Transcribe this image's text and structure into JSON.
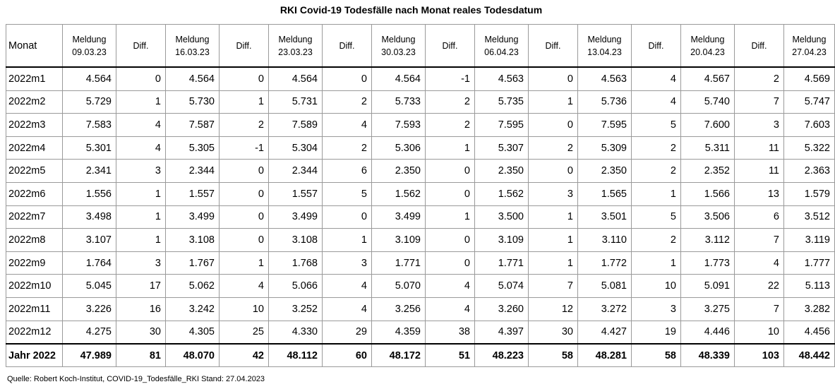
{
  "title": "RKI Covid-19 Todesfälle nach Monat reales Todesdatum",
  "headers": {
    "month": "Monat",
    "diff": "Diff.",
    "meldung_label": "Meldung",
    "meldung_dates": [
      "09.03.23",
      "16.03.23",
      "23.03.23",
      "30.03.23",
      "06.04.23",
      "13.04.23",
      "20.04.23",
      "27.04.23"
    ]
  },
  "rows": [
    {
      "month": "2022m1",
      "cells": [
        "4.564",
        "0",
        "4.564",
        "0",
        "4.564",
        "0",
        "4.564",
        "-1",
        "4.563",
        "0",
        "4.563",
        "4",
        "4.567",
        "2",
        "4.569"
      ]
    },
    {
      "month": "2022m2",
      "cells": [
        "5.729",
        "1",
        "5.730",
        "1",
        "5.731",
        "2",
        "5.733",
        "2",
        "5.735",
        "1",
        "5.736",
        "4",
        "5.740",
        "7",
        "5.747"
      ]
    },
    {
      "month": "2022m3",
      "cells": [
        "7.583",
        "4",
        "7.587",
        "2",
        "7.589",
        "4",
        "7.593",
        "2",
        "7.595",
        "0",
        "7.595",
        "5",
        "7.600",
        "3",
        "7.603"
      ]
    },
    {
      "month": "2022m4",
      "cells": [
        "5.301",
        "4",
        "5.305",
        "-1",
        "5.304",
        "2",
        "5.306",
        "1",
        "5.307",
        "2",
        "5.309",
        "2",
        "5.311",
        "11",
        "5.322"
      ]
    },
    {
      "month": "2022m5",
      "cells": [
        "2.341",
        "3",
        "2.344",
        "0",
        "2.344",
        "6",
        "2.350",
        "0",
        "2.350",
        "0",
        "2.350",
        "2",
        "2.352",
        "11",
        "2.363"
      ]
    },
    {
      "month": "2022m6",
      "cells": [
        "1.556",
        "1",
        "1.557",
        "0",
        "1.557",
        "5",
        "1.562",
        "0",
        "1.562",
        "3",
        "1.565",
        "1",
        "1.566",
        "13",
        "1.579"
      ]
    },
    {
      "month": "2022m7",
      "cells": [
        "3.498",
        "1",
        "3.499",
        "0",
        "3.499",
        "0",
        "3.499",
        "1",
        "3.500",
        "1",
        "3.501",
        "5",
        "3.506",
        "6",
        "3.512"
      ]
    },
    {
      "month": "2022m8",
      "cells": [
        "3.107",
        "1",
        "3.108",
        "0",
        "3.108",
        "1",
        "3.109",
        "0",
        "3.109",
        "1",
        "3.110",
        "2",
        "3.112",
        "7",
        "3.119"
      ]
    },
    {
      "month": "2022m9",
      "cells": [
        "1.764",
        "3",
        "1.767",
        "1",
        "1.768",
        "3",
        "1.771",
        "0",
        "1.771",
        "1",
        "1.772",
        "1",
        "1.773",
        "4",
        "1.777"
      ]
    },
    {
      "month": "2022m10",
      "cells": [
        "5.045",
        "17",
        "5.062",
        "4",
        "5.066",
        "4",
        "5.070",
        "4",
        "5.074",
        "7",
        "5.081",
        "10",
        "5.091",
        "22",
        "5.113"
      ]
    },
    {
      "month": "2022m11",
      "cells": [
        "3.226",
        "16",
        "3.242",
        "10",
        "3.252",
        "4",
        "3.256",
        "4",
        "3.260",
        "12",
        "3.272",
        "3",
        "3.275",
        "7",
        "3.282"
      ]
    },
    {
      "month": "2022m12",
      "cells": [
        "4.275",
        "30",
        "4.305",
        "25",
        "4.330",
        "29",
        "4.359",
        "38",
        "4.397",
        "30",
        "4.427",
        "19",
        "4.446",
        "10",
        "4.456"
      ]
    }
  ],
  "total": {
    "month": "Jahr 2022",
    "cells": [
      "47.989",
      "81",
      "48.070",
      "42",
      "48.112",
      "60",
      "48.172",
      "51",
      "48.223",
      "58",
      "48.281",
      "58",
      "48.339",
      "103",
      "48.442"
    ]
  },
  "source": "Quelle: Robert Koch-Institut, COVID-19_Todesfälle_RKI Stand: 27.04.2023"
}
